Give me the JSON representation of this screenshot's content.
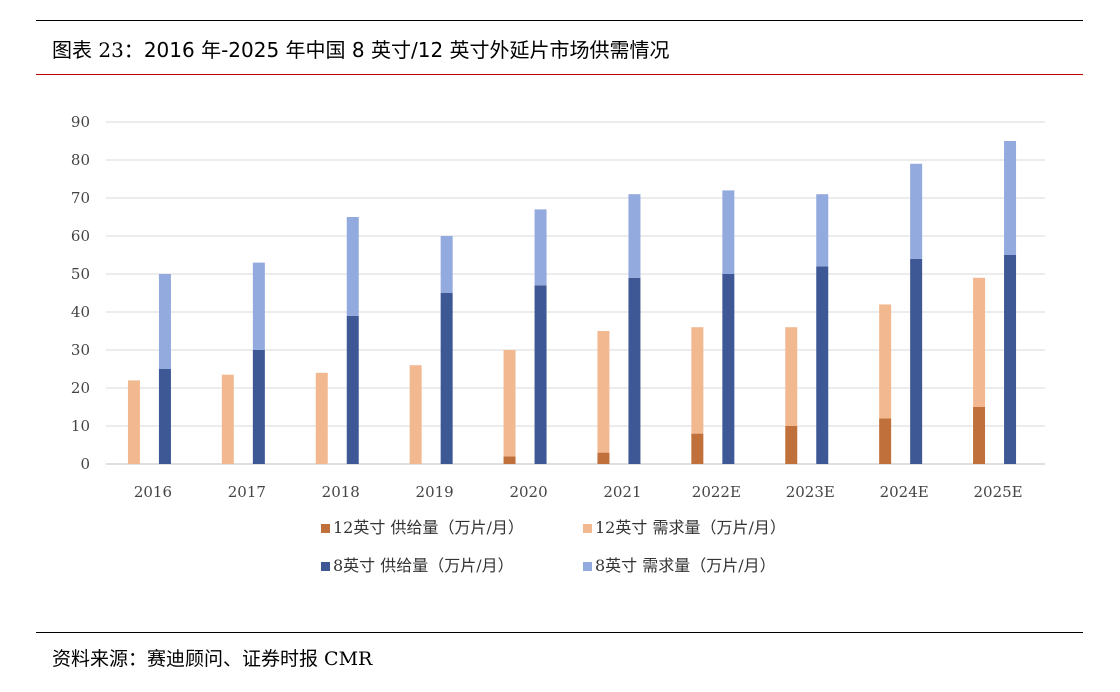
{
  "header": {
    "prefix": "图表 23：",
    "title": "2016 年-2025 年中国 8 英寸/12 英寸外延片市场供需情况"
  },
  "source": "资料来源：赛迪顾问、证券时报 CMR",
  "chart_data": {
    "type": "bar",
    "title": "2016 年-2025 年中国 8 英寸/12 英寸外延片市场供需情况",
    "categories": [
      "2016",
      "2017",
      "2018",
      "2019",
      "2020",
      "2021",
      "2022E",
      "2023E",
      "2024E",
      "2025E"
    ],
    "ylim": [
      0,
      90
    ],
    "yticks": [
      0,
      10,
      20,
      30,
      40,
      50,
      60,
      70,
      80,
      90
    ],
    "grid": true,
    "stacks": [
      "12inch",
      "8inch"
    ],
    "series": [
      {
        "name": "12英寸 供给量（万片/月）",
        "stack": "12inch",
        "color": "#c0703a",
        "values": [
          0,
          0,
          0,
          0,
          2,
          3,
          8,
          10,
          12,
          15
        ]
      },
      {
        "name": "12英寸 需求量（万片/月）",
        "stack": "12inch",
        "color": "#f2b991",
        "values": [
          22,
          23.5,
          24,
          26,
          28,
          32,
          28,
          26,
          30,
          34
        ]
      },
      {
        "name": "8英寸 供给量（万片/月）",
        "stack": "8inch",
        "color": "#3e5895",
        "values": [
          25,
          30,
          39,
          45,
          47,
          49,
          50,
          52,
          54,
          55
        ]
      },
      {
        "name": "8英寸 需求量（万片/月）",
        "stack": "8inch",
        "color": "#93aade",
        "values": [
          25,
          23,
          26,
          15,
          20,
          22,
          22,
          19,
          25,
          30
        ]
      }
    ],
    "legend_position": "bottom"
  }
}
